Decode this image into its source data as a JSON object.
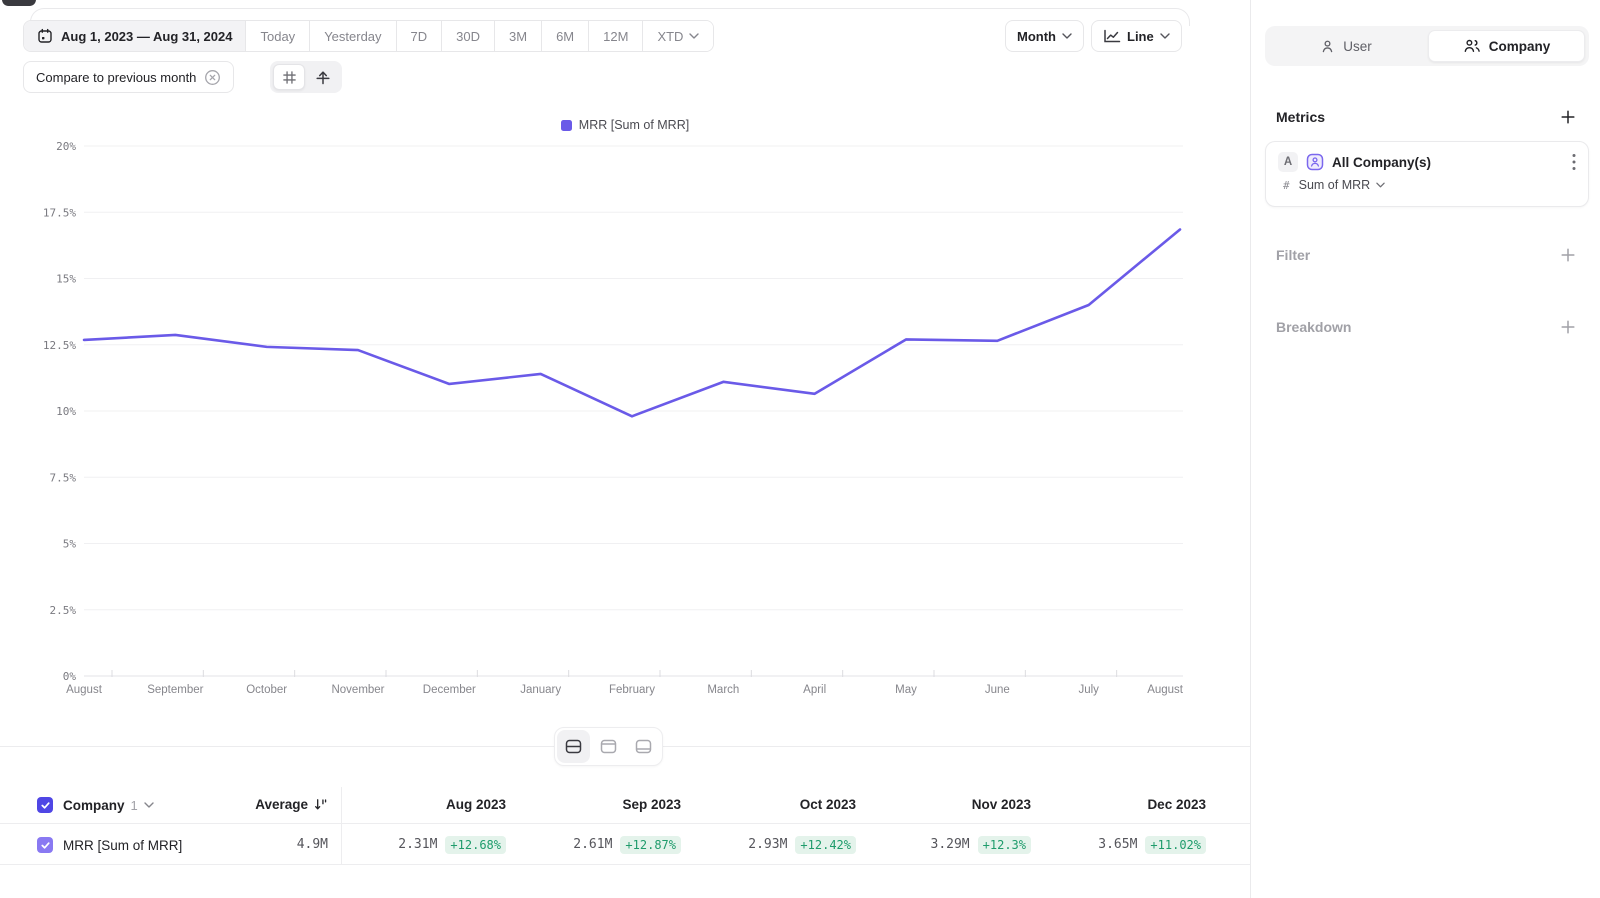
{
  "colors": {
    "accent": "#6A5AE8",
    "positive_text": "#1F9C6C",
    "positive_bg": "#E4F3EB",
    "checkbox_strong": "#4F46E5",
    "checkbox_soft": "#8979F2"
  },
  "toolbar": {
    "date_range": "Aug 1, 2023 — Aug 31, 2024",
    "presets": [
      "Today",
      "Yesterday",
      "7D",
      "30D",
      "3M",
      "6M",
      "12M"
    ],
    "xtd_label": "XTD",
    "granularity": "Month",
    "chart_type": "Line",
    "compare_chip": "Compare to previous month"
  },
  "chart_data": {
    "type": "line",
    "legend": "MRR [Sum of MRR]",
    "legend_position": "top-center",
    "x": [
      "August",
      "September",
      "October",
      "November",
      "December",
      "January",
      "February",
      "March",
      "April",
      "May",
      "June",
      "July",
      "August"
    ],
    "series": [
      {
        "name": "MRR [Sum of MRR]",
        "values": [
          12.68,
          12.87,
          12.42,
          12.3,
          11.02,
          11.4,
          9.8,
          11.1,
          10.65,
          12.7,
          12.65,
          14.0,
          16.85
        ]
      }
    ],
    "ylim": [
      0,
      20
    ],
    "yticks": [
      0,
      2.5,
      5,
      7.5,
      10,
      12.5,
      15,
      17.5,
      20
    ],
    "ytick_labels": [
      "0%",
      "2.5%",
      "5%",
      "7.5%",
      "10%",
      "12.5%",
      "15%",
      "17.5%",
      "20%"
    ],
    "grid": true,
    "line_color": "#6A5AE8"
  },
  "table": {
    "group_label": "Company",
    "group_count": "1",
    "average_label": "Average",
    "columns": [
      "Aug 2023",
      "Sep 2023",
      "Oct 2023",
      "Nov 2023",
      "Dec 2023"
    ],
    "rows": [
      {
        "label": "MRR [Sum of MRR]",
        "average": "4.9M",
        "cells": [
          {
            "value": "2.31M",
            "delta": "+12.68%"
          },
          {
            "value": "2.61M",
            "delta": "+12.87%"
          },
          {
            "value": "2.93M",
            "delta": "+12.42%"
          },
          {
            "value": "3.29M",
            "delta": "+12.3%"
          },
          {
            "value": "3.65M",
            "delta": "+11.02%"
          }
        ]
      }
    ]
  },
  "sidebar": {
    "user_label": "User",
    "company_label": "Company",
    "active_view": "Company",
    "metrics_title": "Metrics",
    "metric_card": {
      "badge": "A",
      "name": "All Company(s)",
      "aggregation_prefix": "#",
      "aggregation": "Sum of MRR"
    },
    "filter_label": "Filter",
    "breakdown_label": "Breakdown"
  }
}
